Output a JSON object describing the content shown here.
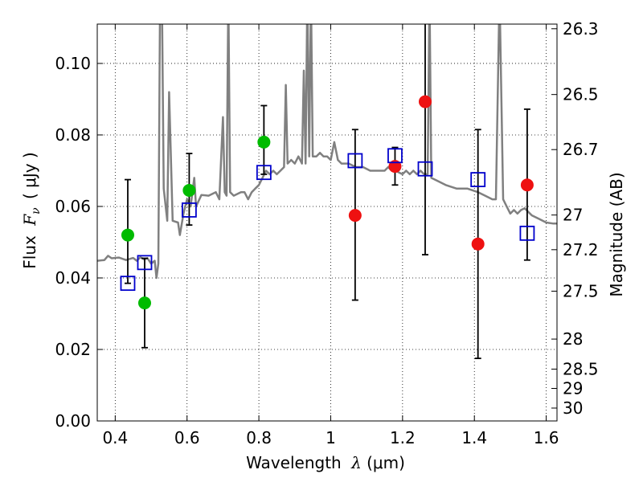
{
  "chart_data": {
    "type": "scatter",
    "title": "",
    "xlabel": {
      "text": "Wavelength",
      "symbol": "λ",
      "unit": "(μm)"
    },
    "ylabel": {
      "text": "Flux",
      "symbol": "F",
      "subscript": "ν",
      "unit": "( μJy )"
    },
    "y2label": "Magnitude (AB)",
    "xlim": [
      0.35,
      1.63
    ],
    "ylim": [
      0.0,
      0.111
    ],
    "grid": true,
    "xticks": [
      0.4,
      0.6,
      0.8,
      1.0,
      1.2,
      1.4,
      1.6
    ],
    "xtick_labels": [
      "0.4",
      "0.6",
      "0.8",
      "1",
      "1.2",
      "1.4",
      "1.6"
    ],
    "yticks": [
      0.0,
      0.02,
      0.04,
      0.06,
      0.08,
      0.1
    ],
    "ytick_labels": [
      "0.00",
      "0.02",
      "0.04",
      "0.06",
      "0.08",
      "0.10"
    ],
    "right_ticks": [
      {
        "label": "26.3",
        "flux": 0.1097
      },
      {
        "label": "26.5",
        "flux": 0.0913
      },
      {
        "label": "26.7",
        "flux": 0.0759
      },
      {
        "label": "27",
        "flux": 0.0576
      },
      {
        "label": "27.2",
        "flux": 0.0479
      },
      {
        "label": "27.5",
        "flux": 0.0363
      },
      {
        "label": "28",
        "flux": 0.0229
      },
      {
        "label": "28.5",
        "flux": 0.0145
      },
      {
        "label": "29",
        "flux": 0.0091
      },
      {
        "label": "30",
        "flux": 0.0036
      }
    ],
    "series": [
      {
        "name": "model-sed",
        "kind": "line",
        "color": "#808080",
        "points": [
          [
            0.35,
            0.0448
          ],
          [
            0.37,
            0.045
          ],
          [
            0.38,
            0.0462
          ],
          [
            0.39,
            0.0455
          ],
          [
            0.41,
            0.0457
          ],
          [
            0.43,
            0.045
          ],
          [
            0.45,
            0.0456
          ],
          [
            0.46,
            0.0448
          ],
          [
            0.47,
            0.0458
          ],
          [
            0.48,
            0.0452
          ],
          [
            0.49,
            0.0455
          ],
          [
            0.5,
            0.044
          ],
          [
            0.51,
            0.0448
          ],
          [
            0.515,
            0.04
          ],
          [
            0.52,
            0.044
          ],
          [
            0.525,
            0.12
          ],
          [
            0.53,
            0.12
          ],
          [
            0.535,
            0.065
          ],
          [
            0.545,
            0.056
          ],
          [
            0.55,
            0.092
          ],
          [
            0.56,
            0.056
          ],
          [
            0.575,
            0.0555
          ],
          [
            0.58,
            0.052
          ],
          [
            0.59,
            0.058
          ],
          [
            0.6,
            0.062
          ],
          [
            0.61,
            0.06
          ],
          [
            0.62,
            0.068
          ],
          [
            0.625,
            0.06
          ],
          [
            0.64,
            0.0632
          ],
          [
            0.66,
            0.063
          ],
          [
            0.68,
            0.064
          ],
          [
            0.69,
            0.062
          ],
          [
            0.7,
            0.085
          ],
          [
            0.705,
            0.064
          ],
          [
            0.71,
            0.063
          ],
          [
            0.715,
            0.12
          ],
          [
            0.72,
            0.064
          ],
          [
            0.73,
            0.063
          ],
          [
            0.75,
            0.064
          ],
          [
            0.76,
            0.064
          ],
          [
            0.77,
            0.062
          ],
          [
            0.78,
            0.064
          ],
          [
            0.79,
            0.065
          ],
          [
            0.8,
            0.066
          ],
          [
            0.81,
            0.068
          ],
          [
            0.82,
            0.07
          ],
          [
            0.83,
            0.069
          ],
          [
            0.84,
            0.07
          ],
          [
            0.85,
            0.069
          ],
          [
            0.86,
            0.07
          ],
          [
            0.87,
            0.071
          ],
          [
            0.875,
            0.094
          ],
          [
            0.88,
            0.072
          ],
          [
            0.89,
            0.073
          ],
          [
            0.9,
            0.072
          ],
          [
            0.91,
            0.074
          ],
          [
            0.92,
            0.072
          ],
          [
            0.925,
            0.098
          ],
          [
            0.93,
            0.072
          ],
          [
            0.935,
            0.12
          ],
          [
            0.94,
            0.074
          ],
          [
            0.945,
            0.12
          ],
          [
            0.95,
            0.074
          ],
          [
            0.96,
            0.074
          ],
          [
            0.97,
            0.075
          ],
          [
            0.98,
            0.074
          ],
          [
            0.99,
            0.074
          ],
          [
            1.0,
            0.073
          ],
          [
            1.01,
            0.078
          ],
          [
            1.02,
            0.073
          ],
          [
            1.03,
            0.072
          ],
          [
            1.05,
            0.072
          ],
          [
            1.07,
            0.071
          ],
          [
            1.09,
            0.071
          ],
          [
            1.11,
            0.07
          ],
          [
            1.13,
            0.07
          ],
          [
            1.15,
            0.07
          ],
          [
            1.16,
            0.071
          ],
          [
            1.17,
            0.07
          ],
          [
            1.18,
            0.07
          ],
          [
            1.19,
            0.0695
          ],
          [
            1.2,
            0.069
          ],
          [
            1.21,
            0.07
          ],
          [
            1.22,
            0.069
          ],
          [
            1.23,
            0.07
          ],
          [
            1.24,
            0.069
          ],
          [
            1.25,
            0.07
          ],
          [
            1.26,
            0.069
          ],
          [
            1.27,
            0.069
          ],
          [
            1.275,
            0.12
          ],
          [
            1.28,
            0.068
          ],
          [
            1.3,
            0.067
          ],
          [
            1.32,
            0.066
          ],
          [
            1.35,
            0.065
          ],
          [
            1.38,
            0.065
          ],
          [
            1.41,
            0.064
          ],
          [
            1.43,
            0.063
          ],
          [
            1.45,
            0.062
          ],
          [
            1.46,
            0.062
          ],
          [
            1.47,
            0.12
          ],
          [
            1.48,
            0.062
          ],
          [
            1.49,
            0.06
          ],
          [
            1.5,
            0.058
          ],
          [
            1.51,
            0.059
          ],
          [
            1.52,
            0.058
          ],
          [
            1.53,
            0.059
          ],
          [
            1.54,
            0.0595
          ],
          [
            1.56,
            0.0575
          ],
          [
            1.58,
            0.0565
          ],
          [
            1.6,
            0.0555
          ],
          [
            1.62,
            0.0552
          ],
          [
            1.63,
            0.0552
          ]
        ]
      },
      {
        "name": "green-observed",
        "kind": "points",
        "color": "#00bb00",
        "points": [
          [
            0.435,
            0.052
          ],
          [
            0.482,
            0.033
          ],
          [
            0.606,
            0.0645
          ],
          [
            0.814,
            0.078
          ]
        ]
      },
      {
        "name": "red-observed",
        "kind": "points",
        "color": "#ee1111",
        "points": [
          [
            1.068,
            0.0575
          ],
          [
            1.179,
            0.0712
          ],
          [
            1.263,
            0.0893
          ],
          [
            1.41,
            0.0495
          ],
          [
            1.547,
            0.066
          ]
        ]
      },
      {
        "name": "blue-model",
        "kind": "squares",
        "color": "#0000cc",
        "points": [
          [
            0.435,
            0.0385
          ],
          [
            0.482,
            0.0443
          ],
          [
            0.606,
            0.059
          ],
          [
            0.814,
            0.0695
          ],
          [
            1.068,
            0.0728
          ],
          [
            1.179,
            0.0742
          ],
          [
            1.263,
            0.0705
          ],
          [
            1.41,
            0.0675
          ],
          [
            1.547,
            0.0525
          ]
        ]
      }
    ],
    "errorbars": [
      {
        "x": 0.435,
        "low": 0.0385,
        "high": 0.0675
      },
      {
        "x": 0.482,
        "low": 0.0205,
        "high": 0.0455
      },
      {
        "x": 0.606,
        "low": 0.0548,
        "high": 0.0748
      },
      {
        "x": 0.814,
        "low": 0.069,
        "high": 0.0882
      },
      {
        "x": 1.068,
        "low": 0.0338,
        "high": 0.0815
      },
      {
        "x": 1.179,
        "low": 0.066,
        "high": 0.0765
      },
      {
        "x": 1.263,
        "low": 0.0465,
        "high": 0.12
      },
      {
        "x": 1.41,
        "low": 0.0175,
        "high": 0.0815
      },
      {
        "x": 1.547,
        "low": 0.045,
        "high": 0.0872
      }
    ]
  }
}
